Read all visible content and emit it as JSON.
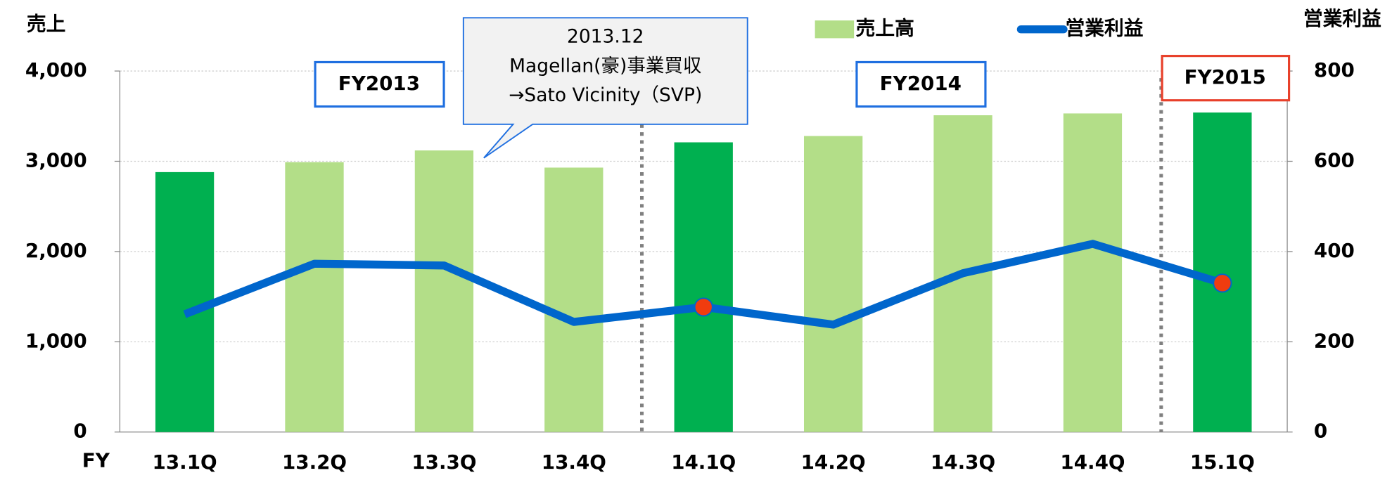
{
  "chart_data": {
    "type": "bar_line",
    "y_label": "売上",
    "y2_label": "営業利益",
    "x_label": "FY",
    "categories": [
      "13.1Q",
      "13.2Q",
      "13.3Q",
      "13.4Q",
      "14.1Q",
      "14.2Q",
      "14.3Q",
      "14.4Q",
      "15.1Q"
    ],
    "series": [
      {
        "name": "売上高",
        "type": "bar",
        "color": "#b3de88",
        "colors": [
          "#00b050",
          "#b3de88",
          "#b3de88",
          "#b3de88",
          "#00b050",
          "#b3de88",
          "#b3de88",
          "#b3de88",
          "#00b050"
        ],
        "values": [
          2880,
          2990,
          3120,
          2930,
          3210,
          3280,
          3510,
          3530,
          3540
        ]
      },
      {
        "name": "営業利益",
        "type": "line",
        "axis": "y2",
        "color": "#0066cc",
        "point_colors": [
          null,
          null,
          null,
          null,
          "#f03c0f",
          null,
          null,
          null,
          "#f03c0f"
        ],
        "values": [
          261,
          373,
          369,
          244,
          277,
          238,
          352,
          417,
          330
        ]
      }
    ],
    "ylim": [
      0,
      4000
    ],
    "yticks": [
      0,
      {
        "value": 1000,
        "label": "1,000"
      },
      {
        "value": 2000,
        "label": "2,000"
      },
      {
        "value": 3000,
        "label": "3,000"
      },
      {
        "value": 4000,
        "label": "4,000"
      }
    ],
    "y2lim": [
      0,
      800
    ],
    "y2ticks": [
      0,
      200,
      400,
      600,
      800
    ],
    "grid": true,
    "annotations": [
      "FY2013",
      "FY2014",
      "FY2015",
      "2013.12",
      "Magellan(豪)事業買収",
      "→Sato Vicinity（SVP)"
    ]
  }
}
